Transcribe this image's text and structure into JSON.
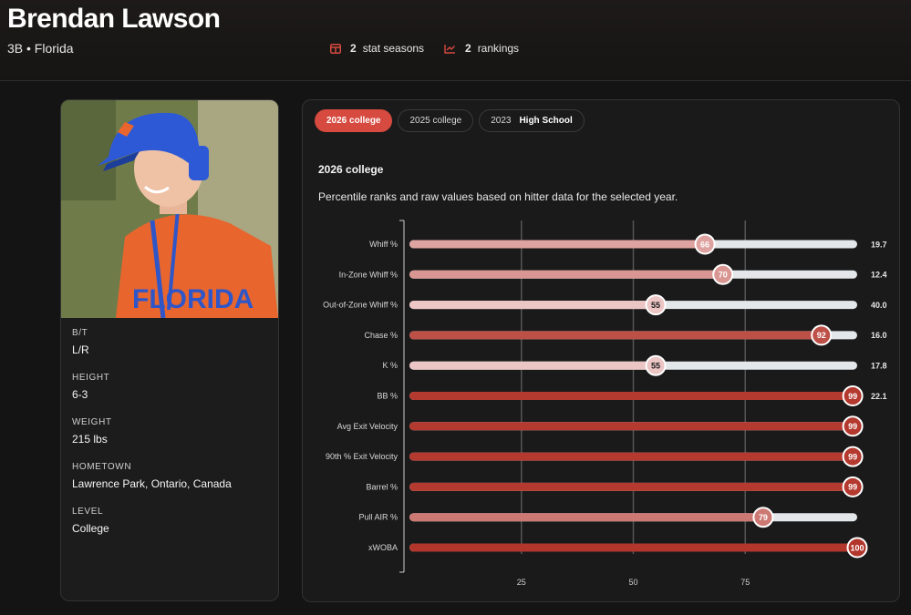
{
  "header": {
    "name": "Brendan Lawson",
    "subtitle": "3B • Florida",
    "stat_seasons": {
      "count": "2",
      "label": "stat seasons",
      "icon": "table-icon"
    },
    "rankings": {
      "count": "2",
      "label": "rankings",
      "icon": "trend-icon"
    },
    "accent": "#d64a3f"
  },
  "profile": {
    "photo_alt": "player-photo",
    "fields": [
      {
        "label": "B/T",
        "value": "L/R"
      },
      {
        "label": "HEIGHT",
        "value": "6-3"
      },
      {
        "label": "WEIGHT",
        "value": "215 lbs"
      },
      {
        "label": "HOMETOWN",
        "value": "Lawrence Park, Ontario, Canada"
      },
      {
        "label": "LEVEL",
        "value": "College"
      }
    ]
  },
  "tabs": [
    {
      "label": "2026 college",
      "active": true
    },
    {
      "label": "2025 college",
      "active": false
    },
    {
      "label": "2023",
      "bold": "High School",
      "active": false
    }
  ],
  "section": {
    "title": "2026 college",
    "description": "Percentile ranks and raw values based on hitter data for the selected year."
  },
  "chart_data": {
    "type": "bar",
    "orientation": "horizontal",
    "xlim": [
      0,
      100
    ],
    "x_ticks": [
      "25",
      "50",
      "75"
    ],
    "grid": true,
    "categories": [
      "Whiff %",
      "In-Zone Whiff %",
      "Out-of-Zone Whiff %",
      "Chase %",
      "K %",
      "BB %",
      "Avg Exit Velocity",
      "90th % Exit Velocity",
      "Barrel %",
      "Pull AIR %",
      "xWOBA"
    ],
    "percentiles": [
      66,
      70,
      55,
      92,
      55,
      99,
      99,
      99,
      99,
      79,
      100
    ],
    "raw_values": [
      "19.7",
      "12.4",
      "40.0",
      "16.0",
      "17.8",
      "22.1",
      "",
      "",
      "",
      "",
      ""
    ]
  }
}
